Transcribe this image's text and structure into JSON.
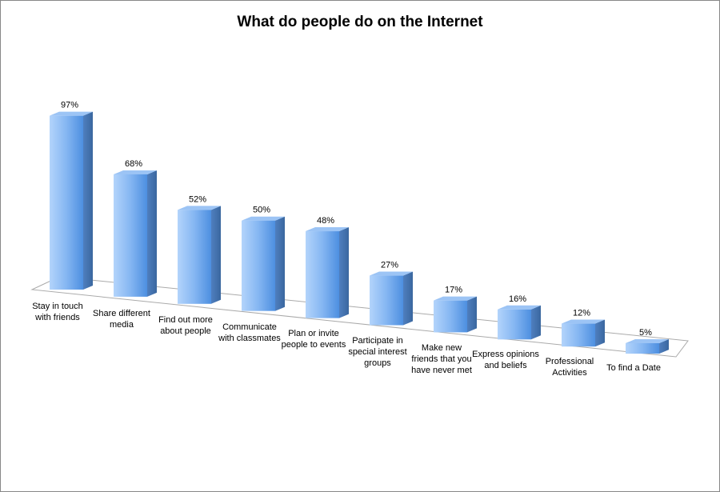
{
  "chart_data": {
    "type": "bar3d",
    "title": "What do people do on the Internet",
    "categories": [
      "Stay in touch with friends",
      "Share different media",
      "Find out more about people",
      "Communicate with classmates",
      "Plan or invite people to events",
      "Participate in special interest groups",
      "Make new friends that you have never met",
      "Express opinions and beliefs",
      "Professional Activities",
      "To find a Date"
    ],
    "values": [
      97,
      68,
      52,
      50,
      48,
      27,
      17,
      16,
      12,
      5
    ],
    "value_labels": [
      "97%",
      "68%",
      "52%",
      "50%",
      "48%",
      "27%",
      "17%",
      "16%",
      "12%",
      "5%"
    ],
    "color": "#5b9be8"
  }
}
